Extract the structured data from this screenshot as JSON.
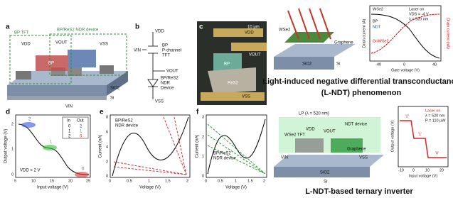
{
  "panel_a": {
    "label": "a",
    "bp_tft": "BP TFT",
    "ndr_device": "BP/ReS2 NDR device",
    "vdd": "VDD",
    "vout": "VOUT",
    "vss": "VSS",
    "bp": "BP",
    "sio2": "SiO2",
    "si": "Si",
    "vin": "VIN"
  },
  "panel_b": {
    "label": "b",
    "vdd": "VDD",
    "tft_1": "BP",
    "tft_2": "P-channel",
    "tft_3": "TFT",
    "vin": "VIN",
    "vout": "VOUT",
    "ndr_1": "BP/ReS2",
    "ndr_2": "NDR",
    "ndr_3": "Device",
    "vss": "VSS"
  },
  "panel_c": {
    "label": "c",
    "vdd": "VDD",
    "scale": "10 μm",
    "vout": "VOUT",
    "bp": "BP",
    "res2": "ReS2",
    "vss": "VSS"
  },
  "panel_d": {
    "label": "d",
    "y_label": "Output voltage (V)",
    "x_label": "Input voltage (V)",
    "xticks": [
      "5",
      "10",
      "15",
      "20",
      "25"
    ],
    "yticks": [
      "0",
      "1",
      "2"
    ],
    "note": "VDD = 2 V",
    "states": [
      "2",
      "1",
      "0"
    ],
    "table": {
      "header": [
        "In",
        "Out"
      ],
      "rows": [
        [
          "0",
          "2"
        ],
        [
          "1",
          "1"
        ],
        [
          "2",
          "0"
        ]
      ]
    }
  },
  "panel_e": {
    "label": "e",
    "device": "BP/ReS2",
    "device_2": "NDR device",
    "y_label": "Current (nA)",
    "x_label": "Voltage (V)",
    "xticks": [
      "0",
      "0.5",
      "1",
      "1.5",
      "2"
    ],
    "yticks": [
      "0",
      "2",
      "4",
      "6",
      "8"
    ]
  },
  "panel_f": {
    "label": "f",
    "device": "BP/ReS2",
    "device_2": "NDR device",
    "y_label": "Current (nA)",
    "x_label": "Voltage (V)",
    "xticks": [
      "0",
      "0.5",
      "1",
      "1.5",
      "2"
    ],
    "yticks": [
      "0",
      "1",
      "2",
      "3"
    ]
  },
  "top_right": {
    "wse2": "WSe2",
    "graphene": "Graphene",
    "sio2": "SiO2",
    "si": "Si",
    "inset": {
      "legend_wse2": "WSe2",
      "legend_bp": "BP",
      "ndt": "NDT",
      "gr_wse2": "Gr/WSe2",
      "laser": "Laser on",
      "vds": "VDS = -4 V",
      "lambda": "λ = 520 nm",
      "x_label": "Gate voltage (V)",
      "y_label": "Drain current (A)",
      "y2_label": "Drain current (nA)",
      "xticks": [
        "-40",
        "0",
        "40"
      ]
    },
    "title_1": "Light-induced negative differential transconductance",
    "title_2": "(L-NDT) phenomenon"
  },
  "bottom_right": {
    "laser": "LP (λ = 520 nm)",
    "wse2_tft": "WSe2 TFT",
    "ndt_device": "NDT device",
    "graphene": "Graphene",
    "vdd": "VDD",
    "vout": "VOUT",
    "vin": "VIN",
    "vss": "VSS",
    "sio2": "SiO2",
    "si": "Si",
    "inset": {
      "y_label": "Output voltage (V)",
      "x_label": "Input voltage (V)",
      "laser": "Laser on",
      "lambda": "λ = 520 nm",
      "power": "P = 110 μW",
      "states": [
        "'2'",
        "'1'",
        "'0'"
      ],
      "xticks": [
        "-10",
        "0",
        "10",
        "20"
      ]
    },
    "title": "L-NDT-based ternary inverter"
  }
}
